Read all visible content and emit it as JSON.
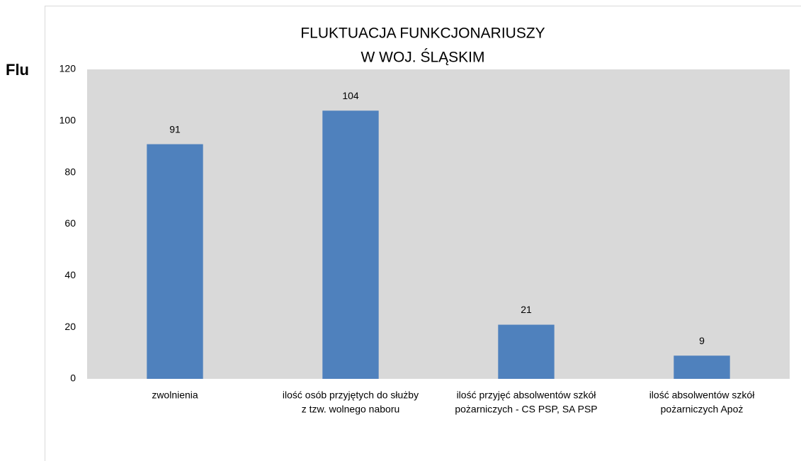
{
  "background_text": "Flu",
  "chart_data": {
    "type": "bar",
    "title": [
      "FLUKTUACJA FUNKCJONARIUSZY",
      "W WOJ. ŚLĄSKIM"
    ],
    "categories": [
      [
        "zwolnienia"
      ],
      [
        "ilość osób przyjętych do służby",
        "z tzw. wolnego naboru"
      ],
      [
        "ilość przyjęć absolwentów szkół",
        "pożarniczych  - CS PSP, SA PSP"
      ],
      [
        "ilość absolwentów szkół",
        "pożarniczych Apoż"
      ]
    ],
    "values": [
      91,
      104,
      21,
      9
    ],
    "color": "#4f81bd",
    "ylim": [
      0,
      120
    ],
    "yticks": [
      0,
      20,
      40,
      60,
      80,
      100,
      120
    ],
    "grid": false
  }
}
